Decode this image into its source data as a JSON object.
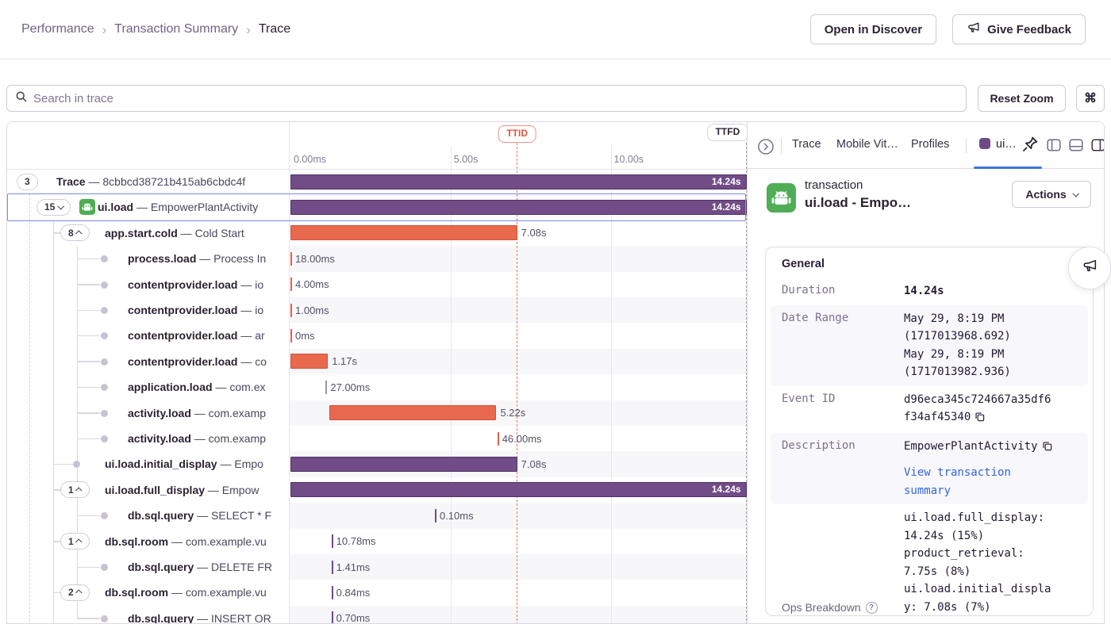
{
  "breadcrumb": {
    "items": [
      "Performance",
      "Transaction Summary",
      "Trace"
    ],
    "separator": "›"
  },
  "header": {
    "open_in_discover": "Open in Discover",
    "give_feedback": "Give Feedback"
  },
  "toolbar": {
    "search_placeholder": "Search in trace",
    "reset_zoom_label": "Reset Zoom",
    "shortcut_key": "⌘"
  },
  "trace_meta": {
    "separator": "—"
  },
  "timeline": {
    "ticks": [
      {
        "label": "0.00ms",
        "t_s": 0
      },
      {
        "label": "5.00s",
        "t_s": 5
      },
      {
        "label": "10.00s",
        "t_s": 10
      }
    ],
    "ttid_label": "TTID",
    "ttfd_label": "TTFD",
    "ttid_s": 7.08,
    "ttfd_s": 14.24
  },
  "trace_rows": [
    {
      "op": "Trace",
      "desc": "8cbbcd38721b415ab6cbdc4f",
      "badge": "3",
      "chevron": null,
      "level": 0,
      "selected": false,
      "span": {
        "kind": "bar",
        "color": "purple",
        "start_s": 0,
        "duration_s": 14.24,
        "label": "14.24s",
        "label_pos": "inside"
      }
    },
    {
      "op": "ui.load",
      "desc": "EmpowerPlantActivity",
      "badge": "15",
      "chevron": "down",
      "level": 1,
      "icon": "android",
      "selected": true,
      "span": {
        "kind": "bar",
        "color": "purple",
        "start_s": 0,
        "duration_s": 14.24,
        "label": "14.24s",
        "label_pos": "inside"
      }
    },
    {
      "op": "app.start.cold",
      "desc": "Cold Start",
      "badge": "8",
      "chevron": "up",
      "level": 2,
      "selected": false,
      "span": {
        "kind": "bar",
        "color": "orange",
        "start_s": 0,
        "duration_s": 7.08,
        "label": "7.08s",
        "label_pos": "right"
      }
    },
    {
      "op": "process.load",
      "desc": "Process In",
      "level": 3,
      "selected": false,
      "span": {
        "kind": "tick",
        "color": "orange",
        "start_s": 0,
        "label": "18.00ms"
      }
    },
    {
      "op": "contentprovider.load",
      "desc": "io",
      "level": 3,
      "selected": false,
      "span": {
        "kind": "tick",
        "color": "orange",
        "start_s": 0,
        "label": "4.00ms"
      }
    },
    {
      "op": "contentprovider.load",
      "desc": "io",
      "level": 3,
      "selected": false,
      "span": {
        "kind": "tick",
        "color": "orange",
        "start_s": 0,
        "label": "1.00ms"
      }
    },
    {
      "op": "contentprovider.load",
      "desc": "ar",
      "level": 3,
      "selected": false,
      "span": {
        "kind": "tick",
        "color": "orange",
        "start_s": 0,
        "label": "0ms"
      }
    },
    {
      "op": "contentprovider.load",
      "desc": "co",
      "level": 3,
      "selected": false,
      "span": {
        "kind": "bar",
        "color": "orange",
        "start_s": 0,
        "duration_s": 1.17,
        "label": "1.17s",
        "label_pos": "right"
      }
    },
    {
      "op": "application.load",
      "desc": "com.ex",
      "level": 3,
      "selected": false,
      "span": {
        "kind": "tick",
        "color": "gray",
        "start_s": 1.1,
        "label": "27.00ms"
      }
    },
    {
      "op": "activity.load",
      "desc": "com.examp",
      "level": 3,
      "selected": false,
      "span": {
        "kind": "bar",
        "color": "orange",
        "start_s": 1.21,
        "duration_s": 5.22,
        "label": "5.22s",
        "label_pos": "right"
      }
    },
    {
      "op": "activity.load",
      "desc": "com.examp",
      "level": 3,
      "selected": false,
      "span": {
        "kind": "tick",
        "color": "orange",
        "start_s": 6.46,
        "label": "46.00ms"
      }
    },
    {
      "op": "ui.load.initial_display",
      "desc": "Empo",
      "level": 2,
      "selected": false,
      "span": {
        "kind": "bar",
        "color": "purple",
        "start_s": 0,
        "duration_s": 7.08,
        "label": "7.08s",
        "label_pos": "right"
      }
    },
    {
      "op": "ui.load.full_display",
      "desc": "Empow",
      "badge": "1",
      "chevron": "up",
      "level": 2,
      "selected": false,
      "span": {
        "kind": "bar",
        "color": "purple",
        "start_s": 0,
        "duration_s": 14.24,
        "label": "14.24s",
        "label_pos": "inside"
      }
    },
    {
      "op": "db.sql.query",
      "desc": "SELECT * F",
      "level": 3,
      "selected": false,
      "span": {
        "kind": "tick",
        "color": "purple",
        "start_s": 4.51,
        "label": "0.10ms"
      }
    },
    {
      "op": "db.sql.room",
      "desc": "com.example.vu",
      "badge": "1",
      "chevron": "up",
      "level": 2,
      "selected": false,
      "span": {
        "kind": "tick",
        "color": "purple",
        "start_s": 1.28,
        "label": "10.78ms"
      }
    },
    {
      "op": "db.sql.query",
      "desc": "DELETE FR",
      "level": 3,
      "selected": false,
      "span": {
        "kind": "tick",
        "color": "purple",
        "start_s": 1.28,
        "label": "1.41ms"
      }
    },
    {
      "op": "db.sql.room",
      "desc": "com.example.vu",
      "badge": "2",
      "chevron": "up",
      "level": 2,
      "selected": false,
      "span": {
        "kind": "tick",
        "color": "purple",
        "start_s": 1.28,
        "label": "0.84ms"
      }
    },
    {
      "op": "db.sql.query",
      "desc": "INSERT OR",
      "level": 3,
      "selected": false,
      "span": {
        "kind": "tick",
        "color": "purple",
        "start_s": 1.28,
        "label": "0.70ms"
      }
    }
  ],
  "side_panel": {
    "tabs": {
      "items": [
        "Trace",
        "Mobile Vit…",
        "Profiles"
      ],
      "active_tab": "ui…"
    },
    "transaction": {
      "type_label": "transaction",
      "title": "ui.load - Empo…",
      "actions_label": "Actions"
    },
    "general": {
      "heading": "General",
      "duration_label": "Duration",
      "duration_value": "14.24s",
      "date_range_label": "Date Range",
      "date_range_lines": [
        "May 29, 8:19 PM",
        "(1717013968.692)",
        "May 29, 8:19 PM",
        "(1717013982.936)"
      ],
      "event_id_label": "Event ID",
      "event_id_value": "d96eca345c724667a35df6f34af45340",
      "description_label": "Description",
      "description_value": "EmpowerPlantActivity",
      "link_label": "View transaction summary",
      "ops_breakdown_label": "Ops Breakdown",
      "ops_breakdown": [
        {
          "name": "ui.load.full_display",
          "value": "14.24s (15%)"
        },
        {
          "name": "product_retrieval",
          "value": "7.75s (8%)"
        },
        {
          "name": "ui.load.initial_display",
          "value": "7.08s (7%)"
        }
      ]
    }
  },
  "colors": {
    "purple_bar": "#714c87",
    "purple_bar_border": "#503366",
    "orange_bar": "#e9694f",
    "orange_bar_border": "#d25038",
    "tick_orange": "#e4604e",
    "tick_gray": "#9a92a8",
    "tick_purple": "#6f4a8f",
    "selection_blue": "#7c8fe3",
    "ttid_red": "#e0563a",
    "ttfd_gray": "#a9a3b2",
    "link_blue": "#3566d6",
    "tab_underline": "#3c74dd",
    "android_green": "#4fae55",
    "alt_row": "#f7f7f9",
    "border": "#e0dce5"
  }
}
